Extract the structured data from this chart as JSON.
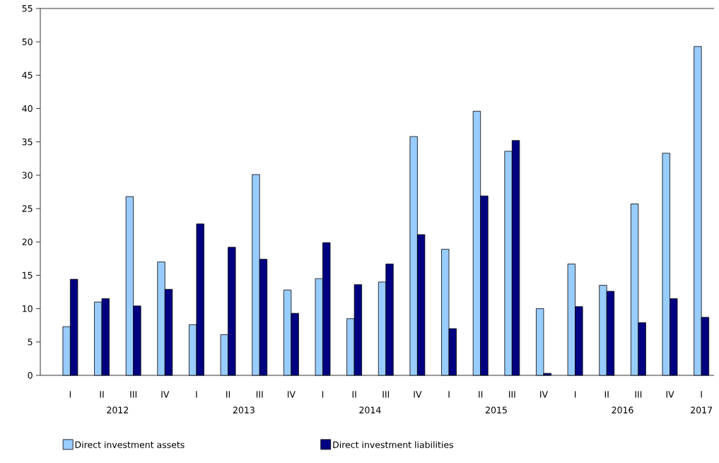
{
  "chart_data": {
    "type": "bar",
    "categories": [
      "I",
      "II",
      "III",
      "IV",
      "I",
      "II",
      "III",
      "IV",
      "I",
      "II",
      "III",
      "IV",
      "I",
      "II",
      "III",
      "IV",
      "I",
      "II",
      "III",
      "IV",
      "I"
    ],
    "series": [
      {
        "name": "Direct investment assets",
        "color": "#99ccff",
        "values": [
          7.3,
          11.0,
          26.8,
          17.0,
          7.6,
          6.1,
          30.1,
          12.8,
          14.5,
          8.5,
          14.0,
          35.8,
          18.9,
          39.6,
          33.6,
          10.0,
          16.7,
          13.5,
          25.7,
          33.3,
          49.3
        ]
      },
      {
        "name": "Direct investment liabilities",
        "color": "#000080",
        "values": [
          14.4,
          11.5,
          10.4,
          12.9,
          22.7,
          19.2,
          17.4,
          9.3,
          19.9,
          13.6,
          16.7,
          21.1,
          7.0,
          26.9,
          35.2,
          0.3,
          10.3,
          12.6,
          7.9,
          11.5,
          8.7
        ]
      }
    ],
    "annotations": [
      "2012",
      "2013",
      "2014",
      "2015",
      "2016",
      "2017"
    ],
    "ylim": [
      0,
      55
    ],
    "yticks": [
      0,
      5,
      10,
      15,
      20,
      25,
      30,
      35,
      40,
      45,
      50,
      55
    ],
    "legend": "bottom",
    "grid": false
  }
}
